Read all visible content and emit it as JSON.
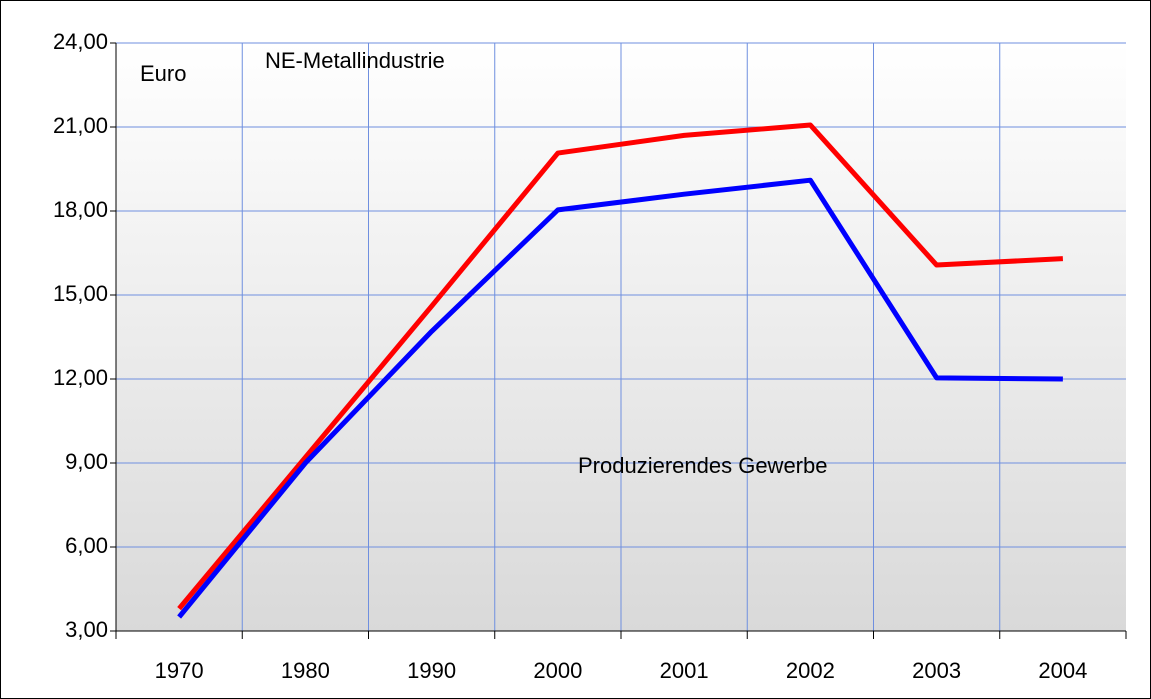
{
  "chart_data": {
    "type": "line",
    "unit_label": "Euro",
    "categories": [
      "1970",
      "1980",
      "1990",
      "2000",
      "2001",
      "2002",
      "2003",
      "2004"
    ],
    "series": [
      {
        "name": "NE-Metallindustrie",
        "color": "#ff0000",
        "values": [
          3.8,
          9.2,
          14.6,
          20.07,
          20.7,
          21.07,
          16.07,
          16.3
        ]
      },
      {
        "name": "Produzierendes Gewerbe",
        "color": "#0000ff",
        "values": [
          3.5,
          9.0,
          13.7,
          18.04,
          18.6,
          19.1,
          12.04,
          12.0
        ]
      }
    ],
    "ylim": [
      3,
      24
    ],
    "yticks": [
      {
        "value": 3,
        "label": "3,00"
      },
      {
        "value": 6,
        "label": "6,00"
      },
      {
        "value": 9,
        "label": "9,00"
      },
      {
        "value": 12,
        "label": "12,00"
      },
      {
        "value": 15,
        "label": "15,00"
      },
      {
        "value": 18,
        "label": "18,00"
      },
      {
        "value": 21,
        "label": "21,00"
      },
      {
        "value": 24,
        "label": "24,00"
      }
    ],
    "grid": true,
    "grid_color": "#6f8fdf"
  }
}
